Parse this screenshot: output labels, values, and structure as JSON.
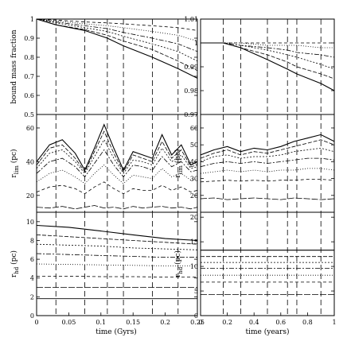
{
  "figure": {
    "left_xlabel": "time (Gyrs)",
    "right_xlabel": "time (years)"
  },
  "chart_data": [
    {
      "type": "line",
      "id": "L1",
      "ylabel": "bound mass fraction",
      "xlim": [
        0,
        0.25
      ],
      "ylim": [
        0.5,
        1.0
      ],
      "xticks": [],
      "xtick_labels": [],
      "yticks": [
        0.5,
        0.6,
        0.7,
        0.8,
        0.9,
        1.0
      ],
      "ytick_labels": [
        "0.5",
        "0.6",
        "0.7",
        "0.8",
        "0.9",
        "1"
      ],
      "vlines": [
        0.03,
        0.075,
        0.11,
        0.135,
        0.18,
        0.22
      ],
      "series": [
        {
          "x": [
            0,
            0.03,
            0.075,
            0.11,
            0.135,
            0.18,
            0.22,
            0.25
          ],
          "y": [
            1.0,
            0.97,
            0.94,
            0.9,
            0.86,
            0.8,
            0.74,
            0.69
          ]
        },
        {
          "x": [
            0,
            0.03,
            0.075,
            0.11,
            0.135,
            0.18,
            0.22,
            0.25
          ],
          "y": [
            1.0,
            0.97,
            0.945,
            0.915,
            0.885,
            0.84,
            0.78,
            0.73
          ]
        },
        {
          "x": [
            0,
            0.03,
            0.075,
            0.11,
            0.135,
            0.18,
            0.22,
            0.25
          ],
          "y": [
            1.0,
            0.98,
            0.955,
            0.935,
            0.91,
            0.87,
            0.83,
            0.78
          ]
        },
        {
          "x": [
            0,
            0.03,
            0.075,
            0.11,
            0.135,
            0.18,
            0.22,
            0.25
          ],
          "y": [
            1.0,
            0.985,
            0.965,
            0.95,
            0.93,
            0.9,
            0.87,
            0.83
          ]
        },
        {
          "x": [
            0,
            0.03,
            0.075,
            0.11,
            0.135,
            0.18,
            0.22,
            0.25
          ],
          "y": [
            1.0,
            0.99,
            0.975,
            0.965,
            0.955,
            0.935,
            0.915,
            0.885
          ]
        },
        {
          "x": [
            0,
            0.03,
            0.075,
            0.11,
            0.135,
            0.18,
            0.22,
            0.25
          ],
          "y": [
            1.0,
            0.995,
            0.985,
            0.98,
            0.975,
            0.965,
            0.955,
            0.94
          ]
        }
      ]
    },
    {
      "type": "line",
      "id": "L2",
      "ylabel": "r_lim (pc)",
      "xlim": [
        0,
        0.25
      ],
      "ylim": [
        10,
        68
      ],
      "xticks": [],
      "xtick_labels": [],
      "yticks": [
        20,
        40,
        60
      ],
      "ytick_labels": [
        "20",
        "40",
        "60"
      ],
      "vlines": [
        0.03,
        0.075,
        0.11,
        0.135,
        0.18,
        0.22
      ],
      "series": [
        {
          "x": [
            0,
            0.02,
            0.04,
            0.06,
            0.075,
            0.09,
            0.105,
            0.12,
            0.135,
            0.15,
            0.165,
            0.18,
            0.195,
            0.21,
            0.225,
            0.24,
            0.25
          ],
          "y": [
            40,
            50,
            53,
            45,
            35,
            48,
            62,
            48,
            35,
            46,
            44,
            42,
            56,
            44,
            50,
            38,
            40
          ]
        },
        {
          "x": [
            0,
            0.02,
            0.04,
            0.06,
            0.075,
            0.09,
            0.105,
            0.12,
            0.135,
            0.15,
            0.165,
            0.18,
            0.195,
            0.21,
            0.225,
            0.24,
            0.25
          ],
          "y": [
            38,
            48,
            50,
            42,
            34,
            46,
            58,
            45,
            34,
            44,
            42,
            40,
            52,
            42,
            47,
            37,
            38
          ]
        },
        {
          "x": [
            0,
            0.02,
            0.04,
            0.06,
            0.075,
            0.09,
            0.105,
            0.12,
            0.135,
            0.15,
            0.165,
            0.18,
            0.195,
            0.21,
            0.225,
            0.24,
            0.25
          ],
          "y": [
            36,
            45,
            47,
            40,
            33,
            43,
            53,
            42,
            33,
            41,
            40,
            38,
            48,
            40,
            44,
            36,
            37
          ]
        },
        {
          "x": [
            0,
            0.02,
            0.04,
            0.06,
            0.075,
            0.09,
            0.105,
            0.12,
            0.135,
            0.15,
            0.165,
            0.18,
            0.195,
            0.21,
            0.225,
            0.24,
            0.25
          ],
          "y": [
            33,
            40,
            42,
            37,
            31,
            39,
            47,
            38,
            31,
            38,
            37,
            35,
            43,
            37,
            40,
            34,
            35
          ]
        },
        {
          "x": [
            0,
            0.02,
            0.04,
            0.06,
            0.075,
            0.09,
            0.105,
            0.12,
            0.135,
            0.15,
            0.165,
            0.18,
            0.195,
            0.21,
            0.225,
            0.24,
            0.25
          ],
          "y": [
            28,
            33,
            35,
            31,
            27,
            33,
            38,
            32,
            27,
            32,
            31,
            30,
            36,
            31,
            33,
            29,
            30
          ]
        },
        {
          "x": [
            0,
            0.02,
            0.04,
            0.06,
            0.075,
            0.09,
            0.105,
            0.12,
            0.135,
            0.15,
            0.165,
            0.18,
            0.195,
            0.21,
            0.225,
            0.24,
            0.25
          ],
          "y": [
            22,
            25,
            26,
            24,
            21,
            25,
            28,
            24,
            21,
            24,
            23,
            23,
            26,
            23,
            25,
            22,
            23
          ]
        },
        {
          "x": [
            0,
            0.02,
            0.04,
            0.06,
            0.075,
            0.09,
            0.105,
            0.12,
            0.135,
            0.15,
            0.165,
            0.18,
            0.195,
            0.21,
            0.225,
            0.24,
            0.25
          ],
          "y": [
            13,
            12.5,
            13.5,
            12,
            13,
            14,
            12.5,
            13,
            12,
            13.5,
            12.5,
            13,
            13.5,
            12.5,
            13,
            12,
            13
          ]
        }
      ]
    },
    {
      "type": "line",
      "id": "L3",
      "ylabel": "r_hd (pc)",
      "xlim": [
        0,
        0.25
      ],
      "ylim": [
        0,
        11
      ],
      "xticks": [
        0,
        0.05,
        0.1,
        0.15,
        0.2,
        0.25
      ],
      "xtick_labels": [
        "0",
        "0.05",
        "0.1",
        "0.15",
        "0.2",
        "0.25"
      ],
      "yticks": [
        0,
        2,
        4,
        6,
        8,
        10
      ],
      "ytick_labels": [
        "0",
        "2",
        "4",
        "6",
        "8",
        "10"
      ],
      "vlines": [
        0.03,
        0.075,
        0.11,
        0.135,
        0.18,
        0.22
      ],
      "series": [
        {
          "x": [
            0,
            0.05,
            0.1,
            0.15,
            0.2,
            0.25
          ],
          "y": [
            9.6,
            9.4,
            9.0,
            8.6,
            8.2,
            8.0
          ]
        },
        {
          "x": [
            0,
            0.05,
            0.1,
            0.15,
            0.2,
            0.25
          ],
          "y": [
            8.6,
            8.4,
            8.2,
            8.0,
            7.8,
            7.6
          ]
        },
        {
          "x": [
            0,
            0.05,
            0.1,
            0.15,
            0.2,
            0.25
          ],
          "y": [
            7.6,
            7.5,
            7.4,
            7.2,
            7.1,
            7.0
          ]
        },
        {
          "x": [
            0,
            0.05,
            0.1,
            0.15,
            0.2,
            0.25
          ],
          "y": [
            6.6,
            6.5,
            6.4,
            6.3,
            6.2,
            6.2
          ]
        },
        {
          "x": [
            0,
            0.05,
            0.1,
            0.15,
            0.2,
            0.25
          ],
          "y": [
            5.5,
            5.45,
            5.4,
            5.35,
            5.3,
            5.3
          ]
        },
        {
          "x": [
            0,
            0.05,
            0.1,
            0.15,
            0.2,
            0.25
          ],
          "y": [
            4.2,
            4.2,
            4.15,
            4.15,
            4.1,
            4.1
          ]
        },
        {
          "x": [
            0,
            0.05,
            0.1,
            0.15,
            0.2,
            0.25
          ],
          "y": [
            3.0,
            3.0,
            3.0,
            3.0,
            3.0,
            3.0
          ]
        },
        {
          "x": [
            0,
            0.05,
            0.1,
            0.15,
            0.2,
            0.25
          ],
          "y": [
            1.8,
            1.8,
            1.8,
            1.8,
            1.8,
            1.8
          ]
        }
      ]
    },
    {
      "type": "line",
      "id": "R1",
      "ylabel": "",
      "xlim": [
        0,
        1
      ],
      "ylim": [
        0.97,
        1.01
      ],
      "xticks": [],
      "xtick_labels": [],
      "yticks": [
        0.97,
        0.98,
        0.99,
        1.0,
        1.01
      ],
      "ytick_labels": [
        "0.97",
        "0.98",
        "0.99",
        "1",
        "1.01"
      ],
      "vlines": [
        0.17,
        0.3,
        0.5,
        0.65,
        0.72,
        0.9
      ],
      "series": [
        {
          "x": [
            0,
            0.17,
            0.3,
            0.5,
            0.65,
            0.72,
            0.9,
            1.0
          ],
          "y": [
            1.0,
            1.0,
            0.998,
            0.993,
            0.989,
            0.987,
            0.983,
            0.98
          ]
        },
        {
          "x": [
            0,
            0.17,
            0.3,
            0.5,
            0.65,
            0.72,
            0.9,
            1.0
          ],
          "y": [
            1.0,
            1.0,
            0.998,
            0.995,
            0.992,
            0.99,
            0.987,
            0.985
          ]
        },
        {
          "x": [
            0,
            0.17,
            0.3,
            0.5,
            0.65,
            0.72,
            0.9,
            1.0
          ],
          "y": [
            1.0,
            1.0,
            0.999,
            0.997,
            0.995,
            0.994,
            0.991,
            0.989
          ]
        },
        {
          "x": [
            0,
            0.17,
            0.3,
            0.5,
            0.65,
            0.72,
            0.9,
            1.0
          ],
          "y": [
            1.0,
            1.0,
            0.999,
            0.998,
            0.997,
            0.996,
            0.995,
            0.994
          ]
        },
        {
          "x": [
            0,
            0.17,
            0.3,
            0.5,
            0.65,
            0.72,
            0.9,
            1.0
          ],
          "y": [
            1.0,
            1.0,
            1.0,
            0.999,
            0.999,
            0.999,
            0.998,
            0.998
          ]
        },
        {
          "x": [
            0,
            1.0
          ],
          "y": [
            1.0,
            1.0
          ]
        }
      ]
    },
    {
      "type": "line",
      "id": "R2",
      "ylabel": "r_lim (pc)",
      "xlim": [
        0,
        1
      ],
      "ylim": [
        10,
        68
      ],
      "xticks": [],
      "xtick_labels": [],
      "yticks": [
        20,
        30,
        40,
        50,
        60
      ],
      "ytick_labels": [
        "20",
        "30",
        "40",
        "50",
        "60"
      ],
      "vlines": [
        0.17,
        0.3,
        0.5,
        0.65,
        0.72,
        0.9
      ],
      "series": [
        {
          "x": [
            0,
            0.1,
            0.2,
            0.3,
            0.4,
            0.5,
            0.6,
            0.7,
            0.8,
            0.9,
            1.0
          ],
          "y": [
            44,
            47,
            49,
            46,
            48,
            47,
            49,
            52,
            54,
            56,
            52
          ]
        },
        {
          "x": [
            0,
            0.1,
            0.2,
            0.3,
            0.4,
            0.5,
            0.6,
            0.7,
            0.8,
            0.9,
            1.0
          ],
          "y": [
            42,
            45,
            47,
            44,
            46,
            45,
            47,
            49,
            51,
            53,
            50
          ]
        },
        {
          "x": [
            0,
            0.1,
            0.2,
            0.3,
            0.4,
            0.5,
            0.6,
            0.7,
            0.8,
            0.9,
            1.0
          ],
          "y": [
            40,
            43,
            44,
            42,
            43,
            43,
            44,
            46,
            47,
            48,
            46
          ]
        },
        {
          "x": [
            0,
            0.1,
            0.2,
            0.3,
            0.4,
            0.5,
            0.6,
            0.7,
            0.8,
            0.9,
            1.0
          ],
          "y": [
            37,
            39,
            40,
            39,
            40,
            39,
            40,
            41,
            42,
            42,
            41
          ]
        },
        {
          "x": [
            0,
            0.1,
            0.2,
            0.3,
            0.4,
            0.5,
            0.6,
            0.7,
            0.8,
            0.9,
            1.0
          ],
          "y": [
            33,
            34,
            35,
            34,
            35,
            34,
            35,
            35,
            36,
            36,
            35
          ]
        },
        {
          "x": [
            0,
            0.1,
            0.2,
            0.3,
            0.4,
            0.5,
            0.6,
            0.7,
            0.8,
            0.9,
            1.0
          ],
          "y": [
            28,
            28.5,
            29,
            28.5,
            29,
            28.5,
            29,
            29,
            29.5,
            29.5,
            29
          ]
        },
        {
          "x": [
            0,
            0.1,
            0.2,
            0.3,
            0.4,
            0.5,
            0.6,
            0.7,
            0.8,
            0.9,
            1.0
          ],
          "y": [
            18,
            18.5,
            17.5,
            18,
            18.5,
            18,
            17.5,
            18.5,
            18,
            17.5,
            18
          ]
        }
      ]
    },
    {
      "type": "line",
      "id": "R3",
      "ylabel": "r_hd (pc)",
      "xlim": [
        0,
        1
      ],
      "ylim": [
        0,
        21
      ],
      "xticks": [
        0,
        0.2,
        0.4,
        0.6,
        0.8,
        1.0
      ],
      "xtick_labels": [
        "0",
        "0.2",
        "0.4",
        "0.6",
        "0.8",
        "1"
      ],
      "yticks": [
        0,
        5,
        10,
        15,
        20
      ],
      "ytick_labels": [
        "0",
        "5",
        "10",
        "15",
        "20"
      ],
      "vlines": [
        0.17,
        0.3,
        0.5,
        0.65,
        0.72,
        0.9
      ],
      "series": [
        {
          "x": [
            0,
            1
          ],
          "y": [
            13.3,
            13.3
          ]
        },
        {
          "x": [
            0,
            1
          ],
          "y": [
            12.0,
            12.0
          ]
        },
        {
          "x": [
            0,
            1
          ],
          "y": [
            10.8,
            10.8
          ]
        },
        {
          "x": [
            0,
            1
          ],
          "y": [
            9.6,
            9.6
          ]
        },
        {
          "x": [
            0,
            1
          ],
          "y": [
            8.2,
            8.2
          ]
        },
        {
          "x": [
            0,
            1
          ],
          "y": [
            6.8,
            6.8
          ]
        },
        {
          "x": [
            0,
            1
          ],
          "y": [
            4.3,
            4.3
          ]
        }
      ]
    }
  ]
}
